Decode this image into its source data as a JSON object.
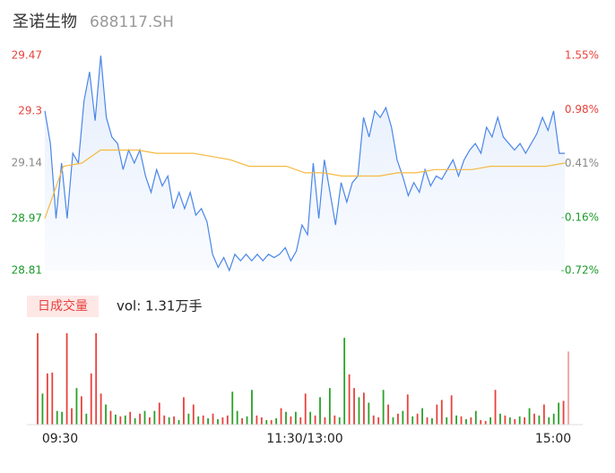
{
  "chart_data": [
    {
      "type": "line",
      "title": "圣诺生物",
      "subtitle": "688117.SH",
      "ylim": [
        28.81,
        29.47
      ],
      "yticks": [
        29.47,
        29.3,
        29.14,
        28.97,
        28.81
      ],
      "ytick_colors": [
        "#e8413c",
        "#e8413c",
        "#888888",
        "#1a9a2a",
        "#1a9a2a"
      ],
      "y2lim": [
        -0.72,
        1.55
      ],
      "y2ticks": [
        {
          "value": 1.55,
          "label": "1.55%"
        },
        {
          "value": 0.98,
          "label": "0.98%"
        },
        {
          "value": 0.41,
          "label": "0.41%"
        },
        {
          "value": -0.16,
          "label": "-0.16%"
        },
        {
          "value": -0.72,
          "label": "-0.72%"
        }
      ],
      "series": [
        {
          "color": "#4a86e8",
          "values": [
            29.3,
            29.2,
            28.97,
            29.14,
            28.97,
            29.17,
            29.14,
            29.33,
            29.42,
            29.27,
            29.47,
            29.28,
            29.22,
            29.2,
            29.12,
            29.18,
            29.14,
            29.18,
            29.1,
            29.05,
            29.12,
            29.07,
            29.1,
            29.0,
            29.05,
            29.0,
            29.05,
            28.98,
            29.0,
            28.96,
            28.86,
            28.82,
            28.85,
            28.81,
            28.86,
            28.84,
            28.86,
            28.84,
            28.86,
            28.84,
            28.86,
            28.85,
            28.86,
            28.88,
            28.84,
            28.87,
            28.95,
            28.92,
            29.14,
            28.97,
            29.15,
            29.05,
            28.95,
            29.08,
            29.02,
            29.08,
            29.1,
            29.28,
            29.22,
            29.3,
            29.28,
            29.31,
            29.25,
            29.15,
            29.1,
            29.04,
            29.08,
            29.05,
            29.12,
            29.07,
            29.1,
            29.09,
            29.12,
            29.15,
            29.1,
            29.15,
            29.18,
            29.2,
            29.17,
            29.25,
            29.22,
            29.28,
            29.22,
            29.2,
            29.18,
            29.2,
            29.17,
            29.2,
            29.23,
            29.28,
            29.24,
            29.3,
            29.17,
            29.17
          ]
        },
        {
          "color": "#f5b942",
          "values": [
            28.97,
            29.13,
            29.14,
            29.18,
            29.18,
            29.18,
            29.17,
            29.17,
            29.17,
            29.16,
            29.15,
            29.13,
            29.13,
            29.13,
            29.11,
            29.11,
            29.1,
            29.1,
            29.1,
            29.11,
            29.11,
            29.12,
            29.12,
            29.12,
            29.13,
            29.13,
            29.13,
            29.13,
            29.14
          ]
        }
      ]
    },
    {
      "type": "bar",
      "label": "日成交量",
      "summary": "vol: 1.31万手",
      "x_labels": [
        "09:30",
        "11:30/13:00",
        "15:00"
      ],
      "ylim": [
        0,
        100
      ],
      "values": [
        100,
        34,
        56,
        57,
        15,
        14,
        100,
        18,
        40,
        31,
        12,
        56,
        100,
        34,
        22,
        15,
        11,
        9,
        10,
        14,
        7,
        12,
        15,
        8,
        15,
        24,
        10,
        8,
        9,
        5,
        30,
        12,
        22,
        9,
        10,
        7,
        12,
        6,
        8,
        10,
        36,
        15,
        7,
        9,
        38,
        10,
        8,
        5,
        5,
        7,
        18,
        14,
        9,
        14,
        8,
        34,
        14,
        10,
        30,
        8,
        40,
        10,
        8,
        95,
        55,
        40,
        30,
        35,
        24,
        10,
        8,
        38,
        22,
        8,
        12,
        15,
        33,
        9,
        12,
        18,
        8,
        7,
        22,
        27,
        8,
        32,
        10,
        9,
        6,
        8,
        15,
        5,
        4,
        8,
        38,
        12,
        10,
        8,
        6,
        9,
        8,
        18,
        12,
        10,
        22,
        8,
        12,
        24,
        26,
        80
      ],
      "up": [
        1,
        0,
        1,
        1,
        0,
        0,
        1,
        1,
        0,
        1,
        0,
        1,
        1,
        1,
        0,
        1,
        0,
        1,
        0,
        1,
        0,
        1,
        0,
        1,
        0,
        1,
        1,
        0,
        1,
        0,
        1,
        0,
        1,
        0,
        1,
        0,
        1,
        0,
        1,
        1,
        0,
        0,
        1,
        0,
        0,
        1,
        1,
        0,
        1,
        0,
        1,
        0,
        1,
        0,
        1,
        1,
        0,
        1,
        0,
        1,
        0,
        1,
        0,
        0,
        1,
        1,
        0,
        1,
        0,
        1,
        1,
        0,
        1,
        0,
        1,
        0,
        1,
        0,
        1,
        0,
        1,
        0,
        1,
        1,
        0,
        1,
        0,
        1,
        0,
        1,
        0,
        1,
        1,
        0,
        1,
        0,
        1,
        0,
        1,
        0,
        1,
        0,
        1,
        0,
        1,
        0,
        0,
        0,
        1,
        1
      ],
      "up_color": "#e8413c",
      "down_color": "#2aa12a"
    }
  ]
}
